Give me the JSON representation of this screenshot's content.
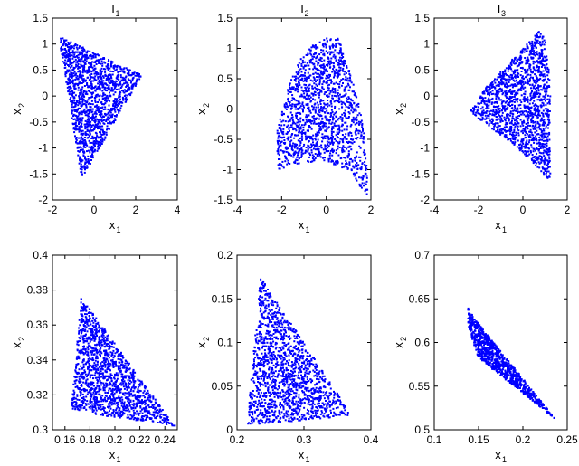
{
  "figure": {
    "background": "#ffffff",
    "point_color": "#0000ff"
  },
  "chart_data": [
    {
      "type": "scatter",
      "title": "I",
      "title_sub": "1",
      "xlabel": "x",
      "xlabel_sub": "1",
      "ylabel": "x",
      "ylabel_sub": "2",
      "xlim": [
        -2,
        4
      ],
      "ylim": [
        -2,
        1.5
      ],
      "xticks": [
        -2,
        0,
        2,
        4
      ],
      "yticks": [
        -2,
        -1.5,
        -1,
        -0.5,
        0,
        0.5,
        1,
        1.5
      ],
      "xtick_labels": [
        "-2",
        "0",
        "2",
        "4"
      ],
      "ytick_labels": [
        "-2",
        "-1.5",
        "-1",
        "-0.5",
        "0",
        "0.5",
        "1",
        "1.5"
      ],
      "grid": false,
      "series": [
        {
          "shape": "triangle",
          "vertices": [
            [
              -1.7,
              1.15
            ],
            [
              2.3,
              0.4
            ],
            [
              -0.6,
              -1.6
            ]
          ],
          "approx_points": 1500
        }
      ]
    },
    {
      "type": "scatter",
      "title": "I",
      "title_sub": "2",
      "xlabel": "x",
      "xlabel_sub": "1",
      "ylabel": "x",
      "ylabel_sub": "2",
      "xlim": [
        -4,
        2
      ],
      "ylim": [
        -1.5,
        1.5
      ],
      "xticks": [
        -4,
        -2,
        0,
        2
      ],
      "yticks": [
        -1.5,
        -1,
        -0.5,
        0,
        0.5,
        1,
        1.5
      ],
      "xtick_labels": [
        "-4",
        "-2",
        "0",
        "2"
      ],
      "ytick_labels": [
        "-1.5",
        "-1",
        "-0.5",
        "0",
        "0.5",
        "1",
        "1.5"
      ],
      "grid": false,
      "series": [
        {
          "shape": "polygon",
          "vertices": [
            [
              -2.2,
              -1.0
            ],
            [
              -2.2,
              -0.3
            ],
            [
              -1.8,
              0.3
            ],
            [
              -1.2,
              0.8
            ],
            [
              -0.5,
              1.1
            ],
            [
              0.3,
              1.2
            ],
            [
              0.6,
              1.15
            ],
            [
              0.9,
              0.8
            ],
            [
              1.3,
              0.3
            ],
            [
              1.7,
              -0.3
            ],
            [
              1.9,
              -1.5
            ],
            [
              1.3,
              -1.15
            ],
            [
              0.6,
              -0.95
            ],
            [
              -0.3,
              -0.85
            ],
            [
              -1.2,
              -0.9
            ]
          ],
          "approx_points": 1500
        }
      ]
    },
    {
      "type": "scatter",
      "title": "I",
      "title_sub": "3",
      "xlabel": "x",
      "xlabel_sub": "1",
      "ylabel": "x",
      "ylabel_sub": "2",
      "xlim": [
        -4,
        2
      ],
      "ylim": [
        -2,
        1.5
      ],
      "xticks": [
        -4,
        -2,
        0,
        2
      ],
      "yticks": [
        -2,
        -1.5,
        -1,
        -0.5,
        0,
        0.5,
        1,
        1.5
      ],
      "xtick_labels": [
        "-4",
        "-2",
        "0",
        "2"
      ],
      "ytick_labels": [
        "-2",
        "-1.5",
        "-1",
        "-0.5",
        "0",
        "0.5",
        "1",
        "1.5"
      ],
      "grid": false,
      "series": [
        {
          "shape": "polygon",
          "vertices": [
            [
              -2.4,
              -0.3
            ],
            [
              -1.6,
              0.2
            ],
            [
              -0.6,
              0.65
            ],
            [
              0.3,
              1.05
            ],
            [
              0.7,
              1.25
            ],
            [
              1.0,
              1.1
            ],
            [
              1.25,
              0.2
            ],
            [
              1.2,
              -0.7
            ],
            [
              1.25,
              -1.65
            ],
            [
              0.5,
              -1.3
            ],
            [
              -0.5,
              -0.9
            ],
            [
              -1.5,
              -0.6
            ]
          ],
          "approx_points": 1500
        }
      ]
    },
    {
      "type": "scatter",
      "title": "",
      "xlabel": "x",
      "xlabel_sub": "1",
      "ylabel": "x",
      "ylabel_sub": "2",
      "xlim": [
        0.15,
        0.25
      ],
      "ylim": [
        0.3,
        0.4
      ],
      "xticks": [
        0.16,
        0.18,
        0.2,
        0.22,
        0.24
      ],
      "yticks": [
        0.3,
        0.32,
        0.34,
        0.36,
        0.38,
        0.4
      ],
      "xtick_labels": [
        "0.16",
        "0.18",
        "0.2",
        "0.22",
        "0.24"
      ],
      "ytick_labels": [
        "0.3",
        "0.32",
        "0.34",
        "0.36",
        "0.38",
        "0.4"
      ],
      "grid": false,
      "series": [
        {
          "shape": "triangle",
          "vertices": [
            [
              0.173,
              0.376
            ],
            [
              0.165,
              0.311
            ],
            [
              0.248,
              0.302
            ]
          ],
          "approx_points": 1500
        }
      ]
    },
    {
      "type": "scatter",
      "title": "",
      "xlabel": "x",
      "xlabel_sub": "1",
      "ylabel": "x",
      "ylabel_sub": "2",
      "xlim": [
        0.2,
        0.4
      ],
      "ylim": [
        0,
        0.2
      ],
      "xticks": [
        0.2,
        0.3,
        0.4
      ],
      "yticks": [
        0,
        0.05,
        0.1,
        0.15,
        0.2
      ],
      "xtick_labels": [
        "0.2",
        "0.3",
        "0.4"
      ],
      "ytick_labels": [
        "0",
        "0.05",
        "0.1",
        "0.15",
        "0.2"
      ],
      "grid": false,
      "series": [
        {
          "shape": "triangle",
          "vertices": [
            [
              0.235,
              0.175
            ],
            [
              0.215,
              0.005
            ],
            [
              0.372,
              0.016
            ]
          ],
          "approx_points": 1500
        }
      ]
    },
    {
      "type": "scatter",
      "title": "",
      "xlabel": "x",
      "xlabel_sub": "1",
      "ylabel": "x",
      "ylabel_sub": "2",
      "xlim": [
        0.1,
        0.25
      ],
      "ylim": [
        0.5,
        0.7
      ],
      "xticks": [
        0.1,
        0.15,
        0.2,
        0.25
      ],
      "yticks": [
        0.5,
        0.55,
        0.6,
        0.65,
        0.7
      ],
      "xtick_labels": [
        "0.1",
        "0.15",
        "0.2",
        "0.25"
      ],
      "ytick_labels": [
        "0.5",
        "0.55",
        "0.6",
        "0.65",
        "0.7"
      ],
      "grid": false,
      "series": [
        {
          "shape": "polygon",
          "vertices": [
            [
              0.138,
              0.641
            ],
            [
              0.145,
              0.628
            ],
            [
              0.236,
              0.513
            ],
            [
              0.15,
              0.582
            ],
            [
              0.138,
              0.62
            ]
          ],
          "approx_points": 1500
        }
      ]
    }
  ]
}
